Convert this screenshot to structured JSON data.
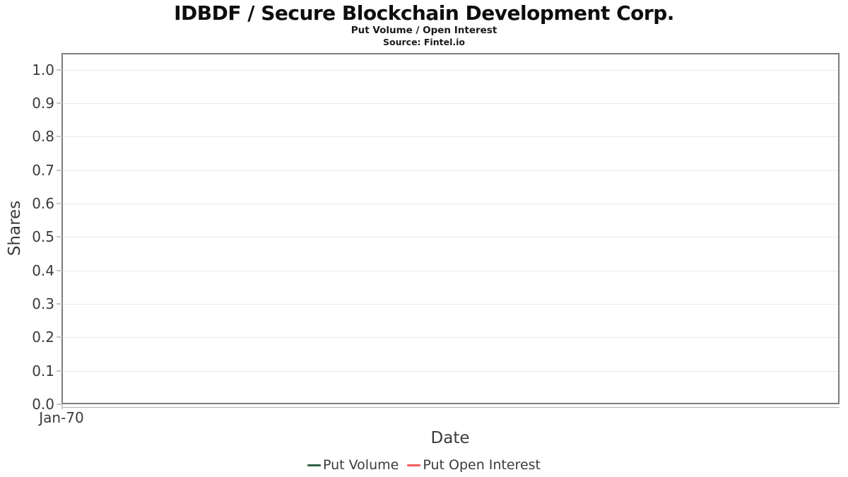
{
  "header": {
    "title": "IDBDF / Secure Blockchain Development Corp.",
    "subtitle": "Put Volume / Open Interest",
    "source": "Source: Fintel.io"
  },
  "chart_data": {
    "type": "line",
    "title": "IDBDF / Secure Blockchain Development Corp.",
    "subtitle": "Put Volume / Open Interest",
    "source": "Source: Fintel.io",
    "xlabel": "Date",
    "ylabel": "Shares",
    "x_ticks": [
      "Jan-70"
    ],
    "y_ticks": [
      "0.0",
      "0.1",
      "0.2",
      "0.3",
      "0.4",
      "0.5",
      "0.6",
      "0.7",
      "0.8",
      "0.9",
      "1.0"
    ],
    "ylim": [
      0.0,
      1.05
    ],
    "grid": "horizontal",
    "grid_color": "#e9e9e9",
    "legend_position": "bottom-center",
    "series": [
      {
        "name": "Put Volume",
        "color": "#2d5f3f",
        "x": [],
        "values": []
      },
      {
        "name": "Put Open Interest",
        "color": "#f15c5c",
        "x": [],
        "values": []
      }
    ]
  }
}
